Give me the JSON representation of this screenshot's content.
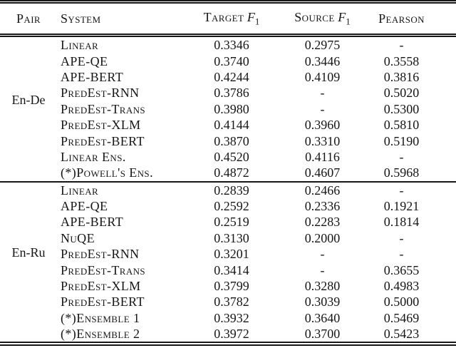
{
  "header": {
    "pair": "Pair",
    "system": "System",
    "target": {
      "label": "Target",
      "math": "F",
      "sub": "1"
    },
    "source": {
      "label": "Source",
      "math": "F",
      "sub": "1"
    },
    "pearson": "Pearson"
  },
  "sections": [
    {
      "pair": "En-De",
      "rows": [
        {
          "system": "Linear",
          "target": "0.3346",
          "source": "0.2975",
          "pearson": "-"
        },
        {
          "system": "APE-QE",
          "target": "0.3740",
          "source": "0.3446",
          "pearson": "0.3558"
        },
        {
          "system": "APE-BERT",
          "target": "0.4244",
          "source": "0.4109",
          "pearson": "0.3816"
        },
        {
          "system": "PredEst-RNN",
          "target": "0.3786",
          "source": "-",
          "pearson": "0.5020"
        },
        {
          "system": "PredEst-Trans",
          "target": "0.3980",
          "source": "-",
          "pearson": "0.5300"
        },
        {
          "system": "PredEst-XLM",
          "target": "0.4144",
          "source": "0.3960",
          "pearson": "0.5810"
        },
        {
          "system": "PredEst-BERT",
          "target": "0.3870",
          "source": "0.3310",
          "pearson": "0.5190"
        },
        {
          "system": "Linear Ens.",
          "target": "0.4520",
          "source": "0.4116",
          "pearson": "-"
        },
        {
          "system": "(*)Powell's Ens.",
          "target": "0.4872",
          "source": "0.4607",
          "pearson": "0.5968"
        }
      ]
    },
    {
      "pair": "En-Ru",
      "rows": [
        {
          "system": "Linear",
          "target": "0.2839",
          "source": "0.2466",
          "pearson": "-"
        },
        {
          "system": "APE-QE",
          "target": "0.2592",
          "source": "0.2336",
          "pearson": "0.1921"
        },
        {
          "system": "APE-BERT",
          "target": "0.2519",
          "source": "0.2283",
          "pearson": "0.1814"
        },
        {
          "system": "NuQE",
          "target": "0.3130",
          "source": "0.2000",
          "pearson": "-"
        },
        {
          "system": "PredEst-RNN",
          "target": "0.3201",
          "source": "-",
          "pearson": "-"
        },
        {
          "system": "PredEst-Trans",
          "target": "0.3414",
          "source": "-",
          "pearson": "0.3655"
        },
        {
          "system": "PredEst-XLM",
          "target": "0.3799",
          "source": "0.3280",
          "pearson": "0.4983"
        },
        {
          "system": "PredEst-BERT",
          "target": "0.3782",
          "source": "0.3039",
          "pearson": "0.5000"
        },
        {
          "system": "(*)Ensemble 1",
          "target": "0.3932",
          "source": "0.3640",
          "pearson": "0.5469"
        },
        {
          "system": "(*)Ensemble 2",
          "target": "0.3972",
          "source": "0.3700",
          "pearson": "0.5423"
        }
      ]
    }
  ]
}
